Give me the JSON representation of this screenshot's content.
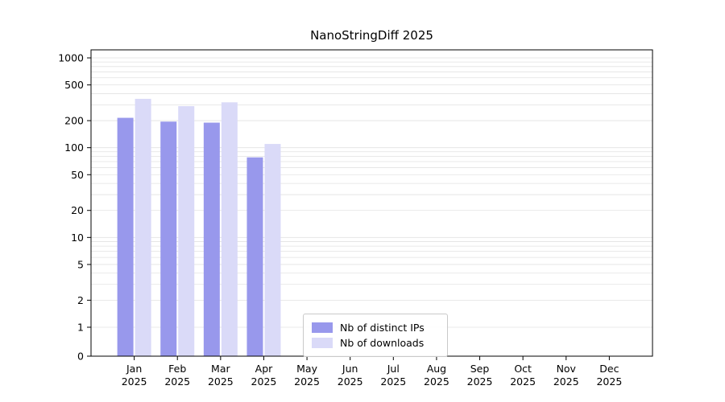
{
  "title": "NanoStringDiff 2025",
  "legend": {
    "items": [
      {
        "label": "Nb of distinct IPs",
        "color": "#9898ec"
      },
      {
        "label": "Nb of downloads",
        "color": "#dadaf8"
      }
    ]
  },
  "chart_data": {
    "type": "bar",
    "title": "NanoStringDiff 2025",
    "yscale": "log (0 baseline, decades 1-10-100-1000)",
    "categories": [
      "Jan",
      "Feb",
      "Mar",
      "Apr",
      "May",
      "Jun",
      "Jul",
      "Aug",
      "Sep",
      "Oct",
      "Nov",
      "Dec"
    ],
    "category_year": "2025",
    "series": [
      {
        "name": "Nb of distinct IPs",
        "color": "#9898ec",
        "values": [
          215,
          195,
          190,
          78,
          0,
          0,
          0,
          0,
          0,
          0,
          0,
          0
        ]
      },
      {
        "name": "Nb of downloads",
        "color": "#dadaf8",
        "values": [
          350,
          290,
          320,
          110,
          0,
          0,
          0,
          0,
          0,
          0,
          0,
          0
        ]
      }
    ],
    "y_ticks": [
      0,
      1,
      2,
      5,
      10,
      20,
      50,
      100,
      200,
      500,
      1000
    ],
    "ylim": [
      0,
      1400
    ],
    "xlabel": "",
    "ylabel": "",
    "grid": "horizontal light-gray lines at log minor ticks",
    "legend_position": "inside bottom-center",
    "bar_color_ips": "#9898ec",
    "bar_color_downloads": "#dadaf8",
    "gridline_color": "#e2e2e2",
    "axis_color": "#000000"
  }
}
